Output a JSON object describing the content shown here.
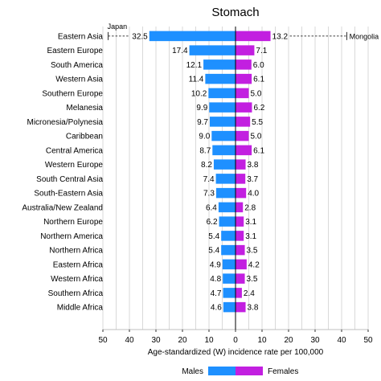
{
  "chart_data": {
    "type": "bar",
    "orientation": "horizontal-diverging",
    "title": "Stomach",
    "xlabel": "Age-standardized (W) incidence rate per 100,000",
    "xlim": [
      -50,
      50
    ],
    "x_ticks": [
      "50",
      "40",
      "30",
      "20",
      "10",
      "0",
      "10",
      "20",
      "30",
      "40",
      "50"
    ],
    "grid": "vertical",
    "legend_position": "bottom-right",
    "categories": [
      "Eastern Asia",
      "Eastern Europe",
      "South America",
      "Western Asia",
      "Southern Europe",
      "Melanesia",
      "Micronesia/Polynesia",
      "Caribbean",
      "Central America",
      "Western Europe",
      "South Central Asia",
      "South-Eastern Asia",
      "Australia/New Zealand",
      "Northern Europe",
      "Northern America",
      "Northern Africa",
      "Eastern Africa",
      "Western Africa",
      "Southern Africa",
      "Middle Africa"
    ],
    "series": [
      {
        "name": "Males",
        "color": "#1e90ff",
        "direction": "left",
        "values": [
          32.5,
          17.4,
          12.1,
          11.4,
          10.2,
          9.9,
          9.7,
          9.0,
          8.7,
          8.2,
          7.4,
          7.3,
          6.4,
          6.2,
          5.4,
          5.4,
          4.9,
          4.8,
          4.7,
          4.6
        ],
        "labels": [
          "32.5",
          "17.4",
          "12.1",
          "11.4",
          "10.2",
          "9.9",
          "9.7",
          "9.0",
          "8.7",
          "8.2",
          "7.4",
          "7.3",
          "6.4",
          "6.2",
          "5.4",
          "5.4",
          "4.9",
          "4.8",
          "4.7",
          "4.6"
        ]
      },
      {
        "name": "Females",
        "color": "#c21fe0",
        "direction": "right",
        "values": [
          13.2,
          7.1,
          6.0,
          6.1,
          5.0,
          6.2,
          5.5,
          5.0,
          6.1,
          3.8,
          3.7,
          4.0,
          2.8,
          3.1,
          3.1,
          3.5,
          4.2,
          3.5,
          2.4,
          3.8
        ],
        "labels": [
          "13.2",
          "7.1",
          "6.0",
          "6.1",
          "5.0",
          "6.2",
          "5.5",
          "5.0",
          "6.1",
          "3.8",
          "3.7",
          "4.0",
          "2.8",
          "3.1",
          "3.1",
          "3.5",
          "4.2",
          "3.5",
          "2.4",
          "3.8"
        ]
      }
    ],
    "annotations": [
      {
        "text": "Japan",
        "series": "Males",
        "category": "Eastern Asia",
        "value": 48
      },
      {
        "text": "Mongolia",
        "series": "Females",
        "category": "Eastern Asia",
        "value": 42
      }
    ]
  }
}
